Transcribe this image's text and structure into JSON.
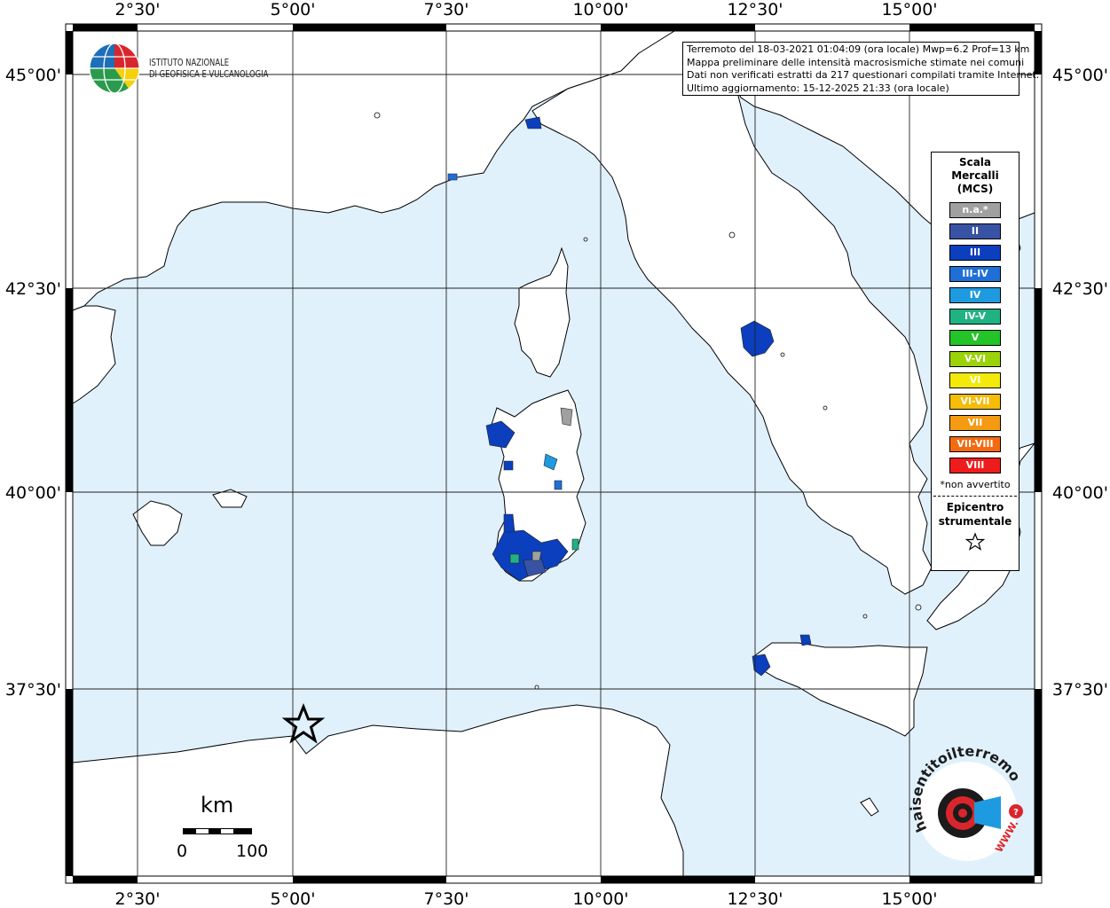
{
  "info": {
    "line1": "Terremoto del 18-03-2021 01:04:09 (ora locale) Mwp=6.2 Prof=13 km",
    "line2": "Mappa preliminare delle intensità macrosismiche stimate nei comuni",
    "line3": "Dati non verificati estratti da 217 questionari compilati tramite Internet.",
    "line4": "Ultimo aggiornamento: 15-12-2025 21:33 (ora locale)"
  },
  "logo_ingv": {
    "line1": "ISTITUTO NAZIONALE",
    "line2": "DI GEOFISICA E VULCANOLOGIA"
  },
  "logo_hsit": {
    "text": "haisentitoilterremoto.it",
    "web": "WWW.",
    "icon": "question-mark-icon"
  },
  "axes": {
    "lon_ticks": [
      "2°30'",
      "5°00'",
      "7°30'",
      "10°00'",
      "12°30'",
      "15°00'"
    ],
    "lat_ticks": [
      "45°00'",
      "42°30'",
      "40°00'",
      "37°30'"
    ]
  },
  "legend": {
    "title_1": "Scala",
    "title_2": "Mercalli",
    "title_3": "(MCS)",
    "items": [
      {
        "label": "n.a.*",
        "color": "#a0a0a0"
      },
      {
        "label": "II",
        "color": "#3953a4"
      },
      {
        "label": "III",
        "color": "#0b3fbd"
      },
      {
        "label": "III-IV",
        "color": "#1f6fd6"
      },
      {
        "label": "IV",
        "color": "#1e9be0"
      },
      {
        "label": "IV-V",
        "color": "#20b283"
      },
      {
        "label": "V",
        "color": "#22c428"
      },
      {
        "label": "V-VI",
        "color": "#9bd308"
      },
      {
        "label": "VI",
        "color": "#f4ea0a"
      },
      {
        "label": "VI-VII",
        "color": "#f5bc08"
      },
      {
        "label": "VII",
        "color": "#f49b13"
      },
      {
        "label": "VII-VIII",
        "color": "#f36b10"
      },
      {
        "label": "VIII",
        "color": "#ee1c1c"
      }
    ],
    "note": "*non avvertito",
    "epicentre_1": "Epicentro",
    "epicentre_2": "strumentale"
  },
  "scale": {
    "unit": "km",
    "min": "0",
    "max": "100"
  },
  "colors": {
    "sea": "#e0f1fc",
    "land": "#ffffff",
    "frame_black": "#000000"
  }
}
